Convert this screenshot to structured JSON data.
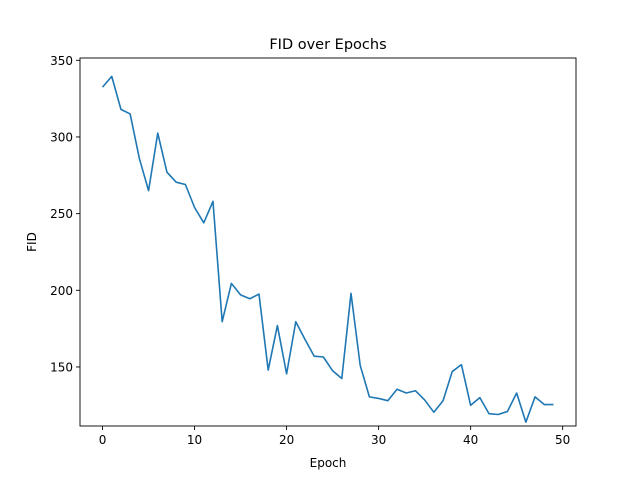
{
  "chart_data": {
    "type": "line",
    "title": "FID over Epochs",
    "xlabel": "Epoch",
    "ylabel": "FID",
    "xlim": [
      -2.45,
      51.45
    ],
    "ylim": [
      111.5,
      351.5
    ],
    "xticks": [
      0,
      10,
      20,
      30,
      40,
      50
    ],
    "yticks": [
      150,
      200,
      250,
      300,
      350
    ],
    "grid": false,
    "line_color": "#1f77b4",
    "series": [
      {
        "x": [
          0,
          1,
          2,
          3,
          4,
          5,
          6,
          7,
          8,
          9,
          10,
          11,
          12,
          13,
          14,
          15,
          16,
          17,
          18,
          19,
          20,
          21,
          22,
          23,
          24,
          25,
          26,
          27,
          28,
          29,
          30,
          31,
          32,
          33,
          34,
          35,
          36,
          37,
          38,
          39,
          40,
          41,
          42,
          43,
          44,
          45,
          46,
          47,
          48,
          49
        ],
        "values": [
          332.5,
          339.5,
          318,
          315,
          286,
          265,
          302.5,
          277,
          270.5,
          269,
          254,
          244,
          258,
          179.5,
          204.5,
          197,
          194.5,
          197.5,
          148,
          177,
          145.5,
          179.5,
          168,
          157,
          156.5,
          147.5,
          142.5,
          198,
          151,
          130.5,
          129.5,
          128,
          135.5,
          133,
          134.5,
          128.5,
          120.5,
          128,
          147,
          151.5,
          125,
          130,
          119.5,
          119,
          121,
          133,
          114,
          130.5,
          125.5,
          125.5
        ]
      }
    ]
  }
}
